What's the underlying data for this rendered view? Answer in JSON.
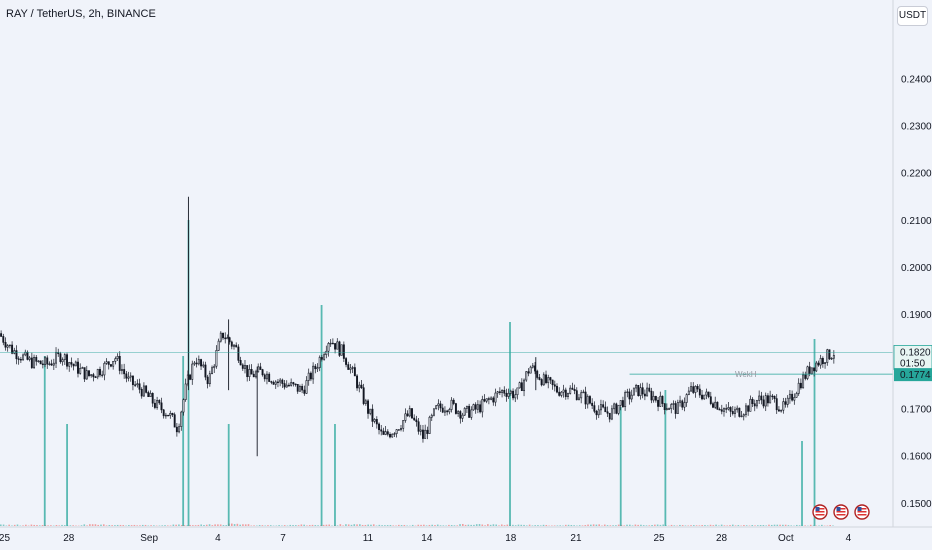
{
  "header": {
    "symbol": "RAY / TetherUS, 2h, BINANCE",
    "currency": "USDT"
  },
  "chart_data": {
    "type": "candlestick",
    "title": "RAY / TetherUS, 2h, BINANCE",
    "ylabel": "USDT",
    "ylim": [
      0.145,
      0.255
    ],
    "y_ticks": [
      0.15,
      0.16,
      0.17,
      0.18,
      0.19,
      0.2,
      0.21,
      0.22,
      0.23,
      0.24
    ],
    "y_tick_labels": [
      "0.1500",
      "0.1600",
      "0.1700",
      "0.1800",
      "0.1900",
      "0.2000",
      "0.2100",
      "0.2200",
      "0.2300",
      "0.2400"
    ],
    "x_tick_labels": [
      "25",
      "28",
      "Sep",
      "4",
      "7",
      "11",
      "14",
      "18",
      "21",
      "25",
      "28",
      "Oct",
      "4"
    ],
    "grid": false,
    "last_price": {
      "value": 0.182,
      "label": "0.1820",
      "countdown": "01:50",
      "color": "#26a69a"
    },
    "weekly_high": {
      "label": "WekH",
      "value": 0.1774,
      "price_label": "0.1774",
      "color": "#26a69a"
    },
    "price_path": [
      [
        0,
        0.186
      ],
      [
        0.015,
        0.1825
      ],
      [
        0.035,
        0.18
      ],
      [
        0.055,
        0.1795
      ],
      [
        0.07,
        0.1815
      ],
      [
        0.085,
        0.179
      ],
      [
        0.1,
        0.177
      ],
      [
        0.115,
        0.1785
      ],
      [
        0.13,
        0.181
      ],
      [
        0.145,
        0.176
      ],
      [
        0.16,
        0.174
      ],
      [
        0.175,
        0.171
      ],
      [
        0.19,
        0.169
      ],
      [
        0.2,
        0.166
      ],
      [
        0.21,
        0.175
      ],
      [
        0.22,
        0.181
      ],
      [
        0.235,
        0.176
      ],
      [
        0.25,
        0.186
      ],
      [
        0.265,
        0.183
      ],
      [
        0.28,
        0.177
      ],
      [
        0.295,
        0.178
      ],
      [
        0.31,
        0.176
      ],
      [
        0.325,
        0.175
      ],
      [
        0.34,
        0.174
      ],
      [
        0.355,
        0.179
      ],
      [
        0.37,
        0.185
      ],
      [
        0.385,
        0.182
      ],
      [
        0.4,
        0.176
      ],
      [
        0.415,
        0.169
      ],
      [
        0.43,
        0.164
      ],
      [
        0.445,
        0.166
      ],
      [
        0.46,
        0.169
      ],
      [
        0.475,
        0.164
      ],
      [
        0.49,
        0.17
      ],
      [
        0.505,
        0.171
      ],
      [
        0.52,
        0.169
      ],
      [
        0.535,
        0.17
      ],
      [
        0.55,
        0.172
      ],
      [
        0.565,
        0.174
      ],
      [
        0.58,
        0.173
      ],
      [
        0.595,
        0.179
      ],
      [
        0.61,
        0.176
      ],
      [
        0.625,
        0.174
      ],
      [
        0.64,
        0.174
      ],
      [
        0.655,
        0.1725
      ],
      [
        0.67,
        0.17
      ],
      [
        0.685,
        0.169
      ],
      [
        0.7,
        0.172
      ],
      [
        0.715,
        0.174
      ],
      [
        0.73,
        0.173
      ],
      [
        0.745,
        0.171
      ],
      [
        0.76,
        0.17
      ],
      [
        0.775,
        0.174
      ],
      [
        0.79,
        0.173
      ],
      [
        0.805,
        0.171
      ],
      [
        0.82,
        0.169
      ],
      [
        0.835,
        0.17
      ],
      [
        0.85,
        0.172
      ],
      [
        0.865,
        0.172
      ],
      [
        0.88,
        0.17
      ],
      [
        0.895,
        0.175
      ],
      [
        0.91,
        0.179
      ],
      [
        0.925,
        0.181
      ],
      [
        0.935,
        0.182
      ]
    ],
    "wick_spikes": [
      {
        "x": 0.211,
        "high": 0.215,
        "low": 0.174
      },
      {
        "x": 0.256,
        "high": 0.189,
        "low": 0.174
      },
      {
        "x": 0.288,
        "high": 0.179,
        "low": 0.16
      },
      {
        "x": 0.6,
        "high": 0.181,
        "low": 0.174
      }
    ],
    "volume_ylim": [
      0,
      1
    ],
    "volume_profile": [
      0.05,
      0.04,
      0.06,
      0.04,
      0.05,
      0.08,
      0.04,
      0.05,
      0.06,
      0.04,
      0.05,
      0.07,
      0.05,
      0.04,
      0.06,
      0.05,
      0.04,
      0.05,
      0.05,
      0.04
    ],
    "volume_spikes": [
      {
        "x": 0.05,
        "value": 0.5
      },
      {
        "x": 0.075,
        "value": 0.3
      },
      {
        "x": 0.205,
        "value": 0.5
      },
      {
        "x": 0.211,
        "value": 0.9
      },
      {
        "x": 0.256,
        "value": 0.3
      },
      {
        "x": 0.36,
        "value": 0.65
      },
      {
        "x": 0.375,
        "value": 0.3
      },
      {
        "x": 0.571,
        "value": 0.6
      },
      {
        "x": 0.695,
        "value": 0.35
      },
      {
        "x": 0.745,
        "value": 0.4
      },
      {
        "x": 0.912,
        "value": 0.55
      },
      {
        "x": 0.898,
        "value": 0.25
      }
    ],
    "up_color": "#26a69a",
    "down_color": "#ef5350",
    "candle_color": "#131722",
    "event_markers": [
      "us-flag-icon",
      "us-flag-icon",
      "us-flag-icon"
    ]
  }
}
